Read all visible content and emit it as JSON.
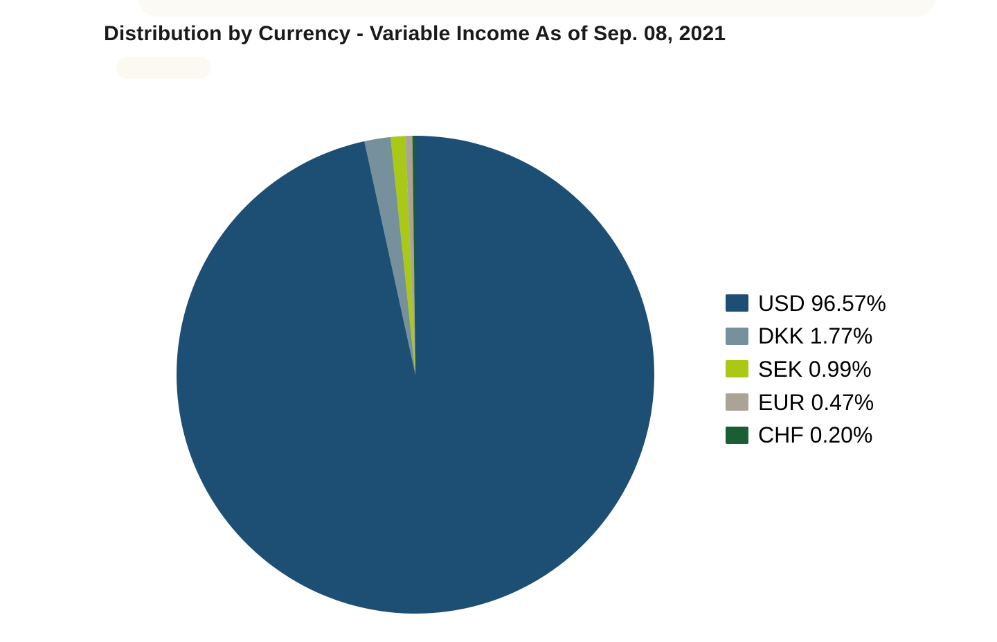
{
  "header": {
    "title": "Distribution by Currency - Variable Income As of Sep. 08, 2021"
  },
  "chart_data": {
    "type": "pie",
    "title": "Distribution by Currency - Variable Income As of Sep. 08, 2021",
    "as_of_date": "Sep. 08, 2021",
    "unit": "%",
    "direction": "clockwise",
    "start_angle_deg": 0,
    "legend_position": "right",
    "slices": [
      {
        "label": "USD",
        "value": 96.57,
        "legend_text": "USD 96.57%",
        "color": "#1D4E73"
      },
      {
        "label": "DKK",
        "value": 1.77,
        "legend_text": "DKK 1.77%",
        "color": "#76909C"
      },
      {
        "label": "SEK",
        "value": 0.99,
        "legend_text": "SEK 0.99%",
        "color": "#A9C916"
      },
      {
        "label": "EUR",
        "value": 0.47,
        "legend_text": "EUR 0.47%",
        "color": "#ABA396"
      },
      {
        "label": "CHF",
        "value": 0.2,
        "legend_text": "CHF 0.20%",
        "color": "#1B5E34"
      }
    ]
  },
  "colors": {
    "background": "#FFFFFF",
    "title_text": "#1A1A1A",
    "legend_text": "#000000"
  }
}
